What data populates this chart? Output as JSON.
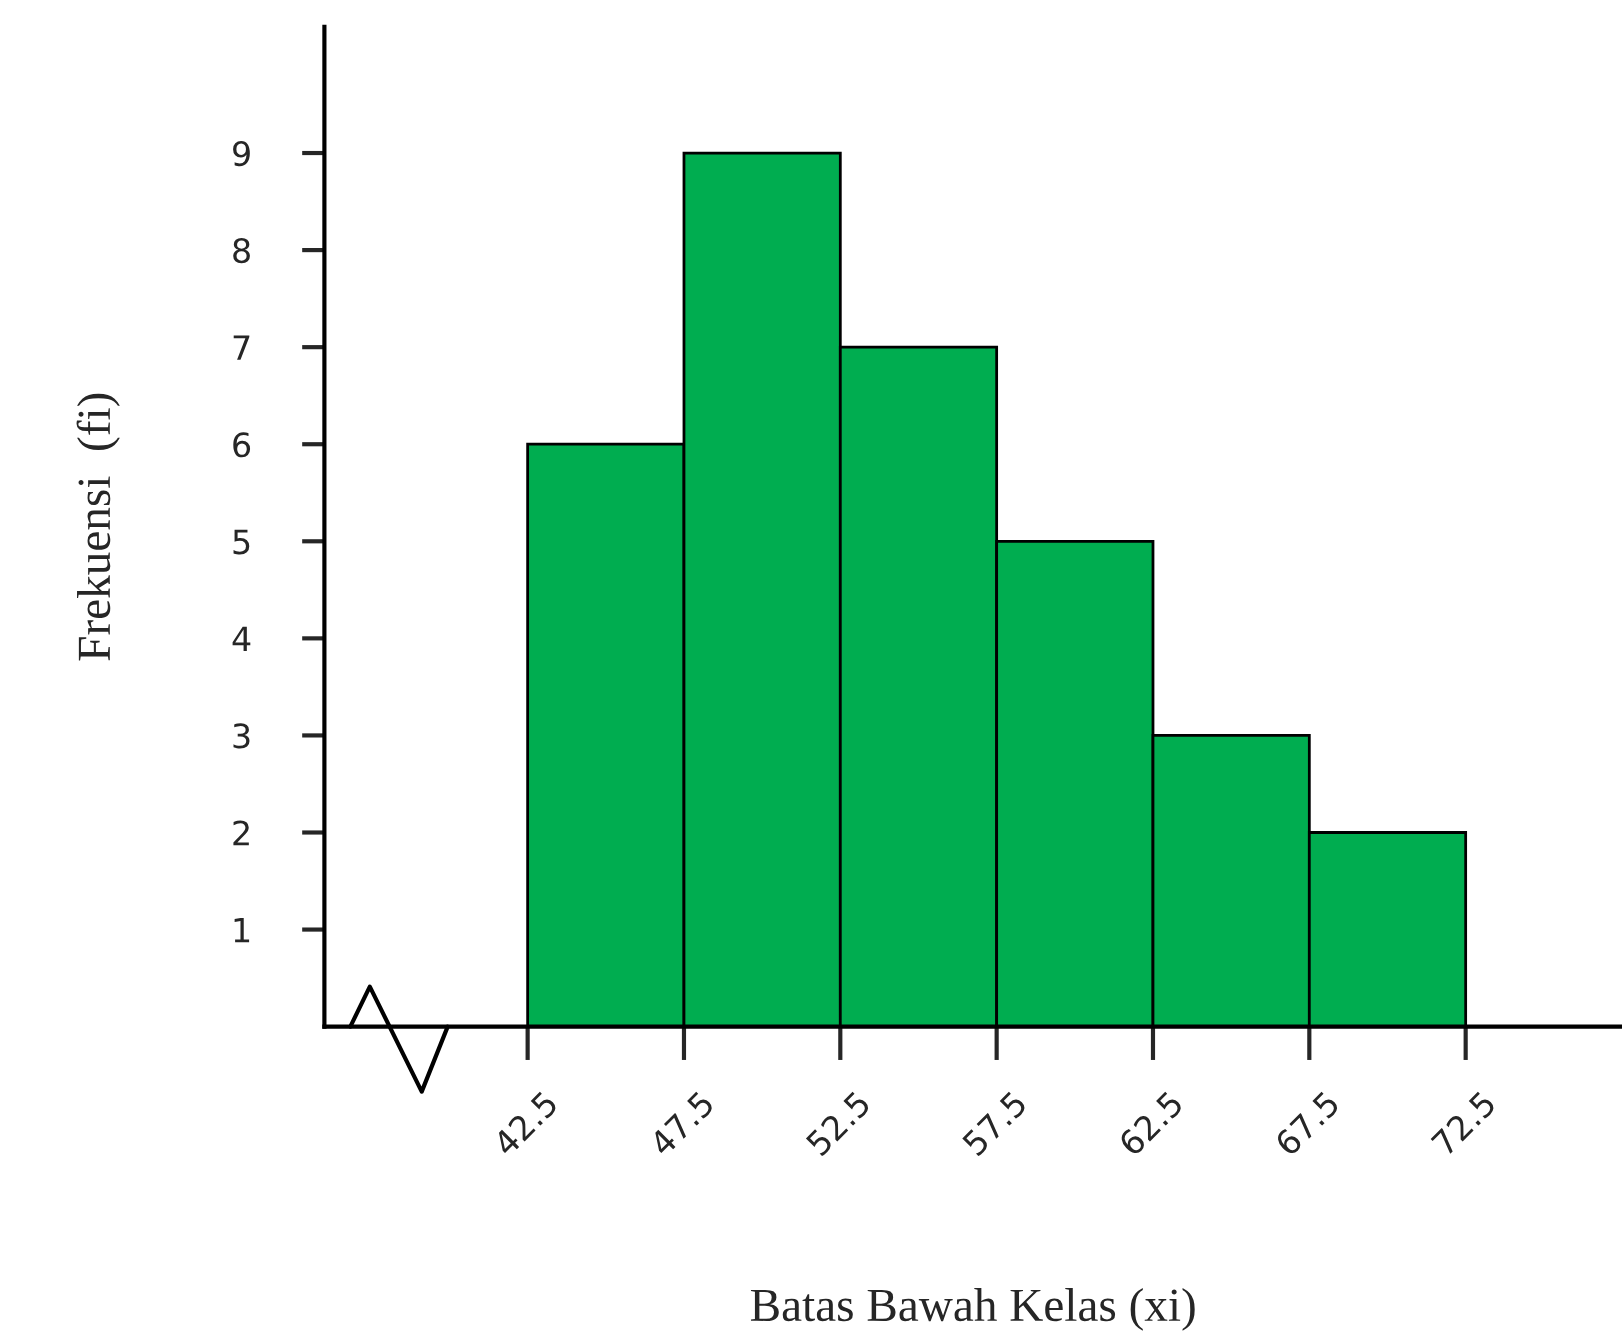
{
  "chart_data": {
    "type": "histogram",
    "xlabel": "Batas Bawah Kelas (xi)",
    "ylabel": "Frekuensi  (fi)",
    "bins": [
      42.5,
      47.5,
      52.5,
      57.5,
      62.5,
      67.5,
      72.5
    ],
    "values": [
      6,
      9,
      7,
      5,
      3,
      2
    ],
    "color": "#00ad50",
    "xlim": [
      36,
      77.5
    ],
    "ylim": [
      0,
      10.3
    ],
    "xticks": [
      42.5,
      47.5,
      52.5,
      57.5,
      62.5,
      67.5,
      72.5
    ],
    "yticks": [
      1,
      2,
      3,
      4,
      5,
      6,
      7,
      8,
      9
    ],
    "grid": false,
    "legend": false
  }
}
